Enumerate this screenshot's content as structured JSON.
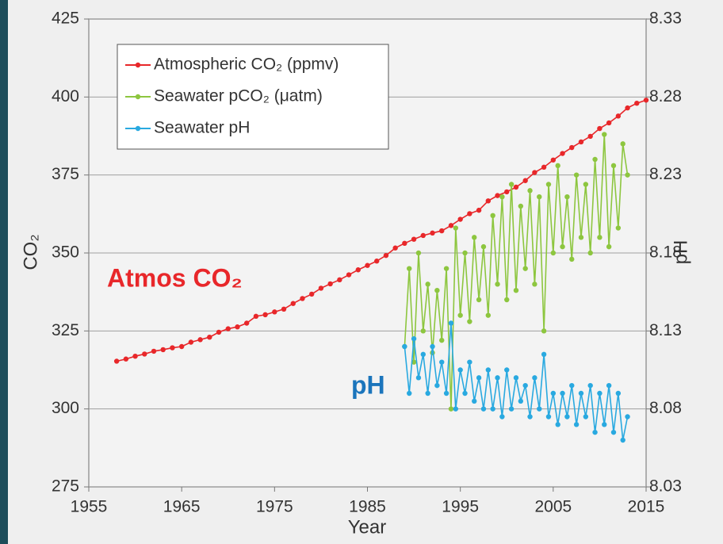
{
  "chart_data": {
    "type": "line",
    "x_label": "Year",
    "y_label": "CO₂",
    "y2_label": "pH",
    "annotations": [
      {
        "text": "Atmos CO₂",
        "color": "#e8272a"
      },
      {
        "text": "pH",
        "color": "#1b75bc"
      }
    ],
    "xlim": [
      1955,
      2015
    ],
    "xticks": [
      1955,
      1965,
      1975,
      1985,
      1995,
      2005,
      2015
    ],
    "ylim": [
      275,
      425
    ],
    "yticks": [
      275,
      300,
      325,
      350,
      375,
      400,
      425
    ],
    "y2lim": [
      8.03,
      8.33
    ],
    "y2ticks": [
      8.03,
      8.08,
      8.13,
      8.18,
      8.23,
      8.28,
      8.33
    ],
    "grid": true,
    "legend": "upper left",
    "series": [
      {
        "name": "Atmospheric CO₂ (ppmv)",
        "color": "#e8272a",
        "x": [
          1958,
          1959,
          1960,
          1961,
          1962,
          1963,
          1964,
          1965,
          1966,
          1967,
          1968,
          1969,
          1970,
          1971,
          1972,
          1973,
          1974,
          1975,
          1976,
          1977,
          1978,
          1979,
          1980,
          1981,
          1982,
          1983,
          1984,
          1985,
          1986,
          1987,
          1988,
          1989,
          1990,
          1991,
          1992,
          1993,
          1994,
          1995,
          1996,
          1997,
          1998,
          1999,
          2000,
          2001,
          2002,
          2003,
          2004,
          2005,
          2006,
          2007,
          2008,
          2009,
          2010,
          2011,
          2012,
          2013,
          2014,
          2015
        ],
        "values": [
          315.3,
          316.0,
          316.9,
          317.6,
          318.5,
          319.0,
          319.6,
          320.0,
          321.4,
          322.2,
          323.0,
          324.6,
          325.7,
          326.3,
          327.5,
          329.7,
          330.2,
          331.1,
          332.0,
          333.8,
          335.4,
          336.8,
          338.7,
          340.1,
          341.4,
          343.0,
          344.6,
          346.0,
          347.4,
          349.2,
          351.6,
          353.1,
          354.4,
          355.6,
          356.4,
          357.1,
          358.8,
          360.8,
          362.6,
          363.7,
          366.7,
          368.4,
          369.6,
          371.1,
          373.2,
          375.8,
          377.5,
          379.8,
          381.9,
          383.8,
          385.6,
          387.4,
          389.9,
          391.7,
          393.9,
          396.5,
          398.0,
          399.0
        ]
      },
      {
        "name": "Seawater pCO₂ (μatm)",
        "color": "#8dc63f",
        "x": [
          1989,
          1989.5,
          1990,
          1990.5,
          1991,
          1991.5,
          1992,
          1992.5,
          1993,
          1993.5,
          1994,
          1994.5,
          1995,
          1995.5,
          1996,
          1996.5,
          1997,
          1997.5,
          1998,
          1998.5,
          1999,
          1999.5,
          2000,
          2000.5,
          2001,
          2001.5,
          2002,
          2002.5,
          2003,
          2003.5,
          2004,
          2004.5,
          2005,
          2005.5,
          2006,
          2006.5,
          2007,
          2007.5,
          2008,
          2008.5,
          2009,
          2009.5,
          2010,
          2010.5,
          2011,
          2011.5,
          2012,
          2012.5,
          2013
        ],
        "values": [
          320,
          345,
          315,
          350,
          325,
          340,
          318,
          338,
          322,
          345,
          300,
          358,
          330,
          350,
          328,
          355,
          335,
          352,
          330,
          362,
          340,
          368,
          335,
          372,
          338,
          365,
          345,
          370,
          340,
          368,
          325,
          372,
          350,
          378,
          352,
          368,
          348,
          375,
          355,
          372,
          350,
          380,
          355,
          388,
          352,
          378,
          358,
          385,
          375
        ]
      },
      {
        "name": "Seawater pH",
        "color": "#29a9e0",
        "axis": "y2",
        "x": [
          1989,
          1989.5,
          1990,
          1990.5,
          1991,
          1991.5,
          1992,
          1992.5,
          1993,
          1993.5,
          1994,
          1994.5,
          1995,
          1995.5,
          1996,
          1996.5,
          1997,
          1997.5,
          1998,
          1998.5,
          1999,
          1999.5,
          2000,
          2000.5,
          2001,
          2001.5,
          2002,
          2002.5,
          2003,
          2003.5,
          2004,
          2004.5,
          2005,
          2005.5,
          2006,
          2006.5,
          2007,
          2007.5,
          2008,
          2008.5,
          2009,
          2009.5,
          2010,
          2010.5,
          2011,
          2011.5,
          2012,
          2012.5,
          2013
        ],
        "values": [
          8.12,
          8.09,
          8.125,
          8.1,
          8.115,
          8.09,
          8.12,
          8.095,
          8.11,
          8.09,
          8.135,
          8.08,
          8.105,
          8.09,
          8.11,
          8.085,
          8.1,
          8.08,
          8.105,
          8.08,
          8.1,
          8.075,
          8.105,
          8.08,
          8.1,
          8.085,
          8.095,
          8.075,
          8.1,
          8.08,
          8.115,
          8.075,
          8.09,
          8.07,
          8.09,
          8.075,
          8.095,
          8.07,
          8.09,
          8.075,
          8.095,
          8.065,
          8.09,
          8.07,
          8.095,
          8.065,
          8.09,
          8.06,
          8.075
        ]
      }
    ]
  }
}
